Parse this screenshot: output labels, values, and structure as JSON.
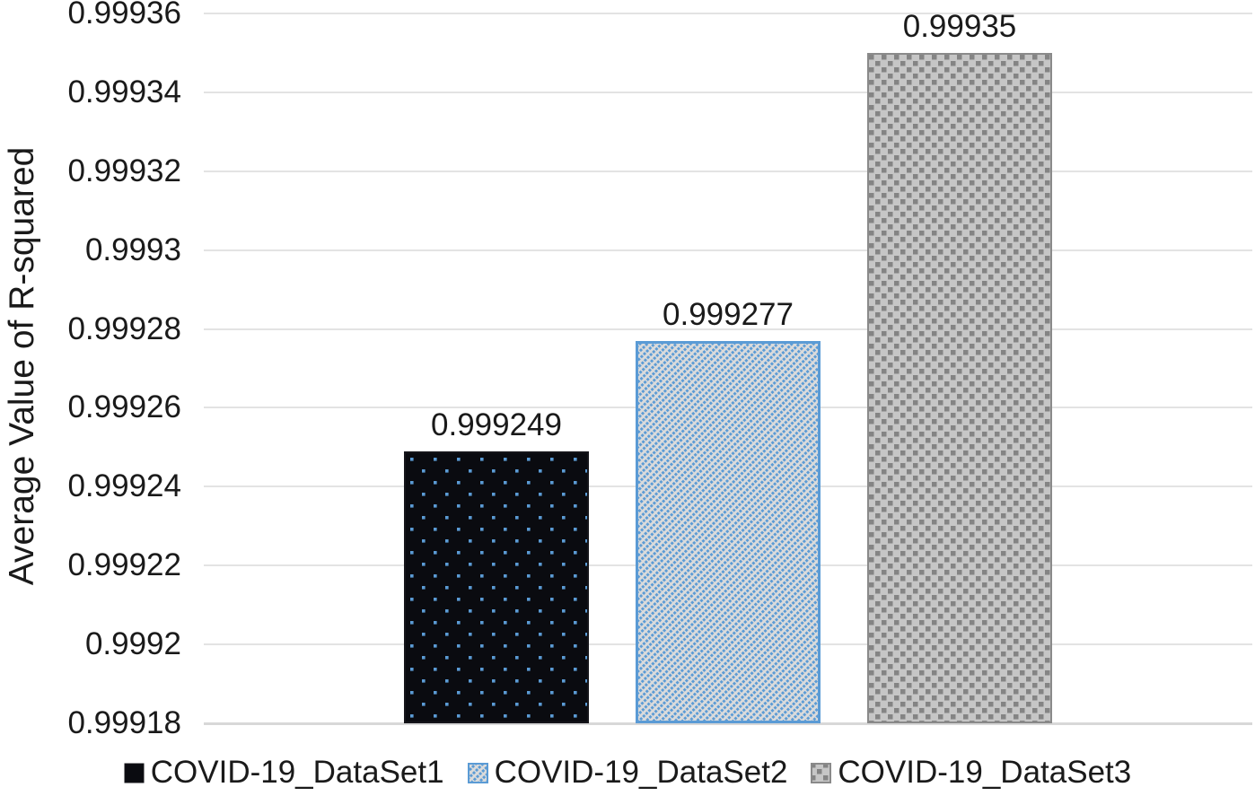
{
  "chart_data": {
    "type": "bar",
    "title": "",
    "xlabel": "",
    "ylabel": "Average Value of R-squared",
    "ylim": [
      0.99918,
      0.99936
    ],
    "ytick_step": 2e-05,
    "ytick_labels": [
      "0.99918",
      "0.9992",
      "0.99922",
      "0.99924",
      "0.99926",
      "0.99928",
      "0.9993",
      "0.99932",
      "0.99934",
      "0.99936"
    ],
    "grid": "horizontal",
    "legend_position": "bottom",
    "categories": [
      "COVID-19_DataSet1",
      "COVID-19_DataSet2",
      "COVID-19_DataSet3"
    ],
    "series": [
      {
        "name": "COVID-19_DataSet1",
        "value": 0.999249,
        "data_label": "0.999249",
        "pattern": "blue-dots-on-black"
      },
      {
        "name": "COVID-19_DataSet2",
        "value": 0.999277,
        "data_label": "0.999277",
        "pattern": "blue-diagonal-hatch"
      },
      {
        "name": "COVID-19_DataSet3",
        "value": 0.99935,
        "data_label": "0.99935",
        "pattern": "gray-checker"
      }
    ]
  },
  "colors": {
    "accent_blue": "#5B9BD5",
    "bar1_fill": "#0A0B10",
    "bar1_border": "#15151A",
    "bar2_fill": "#DBDBDB",
    "bar3_fill": "#C6C6C6",
    "bar3_square": "#848484",
    "bar3_border": "#8A8A8A",
    "grid_line": "#E3E3E3",
    "axis_line": "#D8D8D8",
    "text": "#1A1A1A"
  }
}
